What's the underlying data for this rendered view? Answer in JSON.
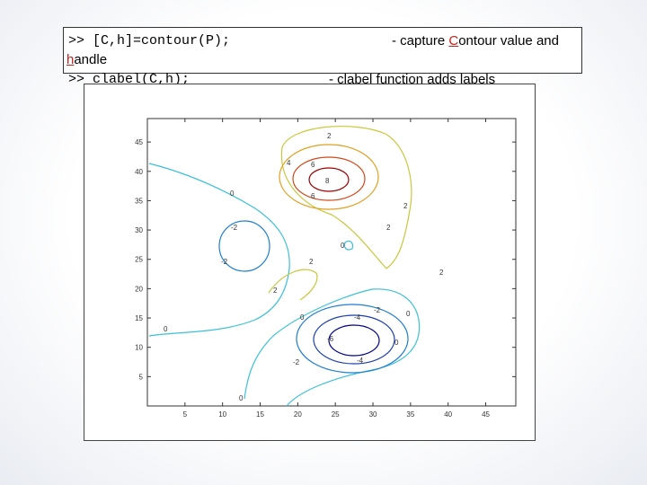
{
  "slide": {
    "code_line_1": ">> [C,h]=contour(P);",
    "comment_1_prefix": "- capture ",
    "comment_1_accent": "C",
    "comment_1_suffix": "ontour value and",
    "code_line_2_accent": "h",
    "code_line_2_suffix": "andle",
    "code_line_3": ">> clabel(C,h);",
    "comment_3": "- clabel function adds labels",
    "accent_color": "#c0221b"
  },
  "chart_data": {
    "type": "contour",
    "x_ticks": [
      5,
      10,
      15,
      20,
      25,
      30,
      35,
      40,
      45
    ],
    "y_ticks": [
      5,
      10,
      15,
      20,
      25,
      30,
      35,
      40,
      45
    ],
    "xlim": [
      0,
      49
    ],
    "ylim": [
      0,
      49
    ],
    "grid": false,
    "contour_levels": [
      {
        "label": "-6",
        "color": "#000088"
      },
      {
        "label": "-4",
        "color": "#1a3fb0"
      },
      {
        "label": "-2",
        "color": "#1f7fd0"
      },
      {
        "label": "0",
        "color": "#3cc0d8"
      },
      {
        "label": "2",
        "color": "#c8c83c"
      },
      {
        "label": "4",
        "color": "#e0a020"
      },
      {
        "label": "6",
        "color": "#d04818"
      },
      {
        "label": "8",
        "color": "#a00000"
      }
    ]
  }
}
